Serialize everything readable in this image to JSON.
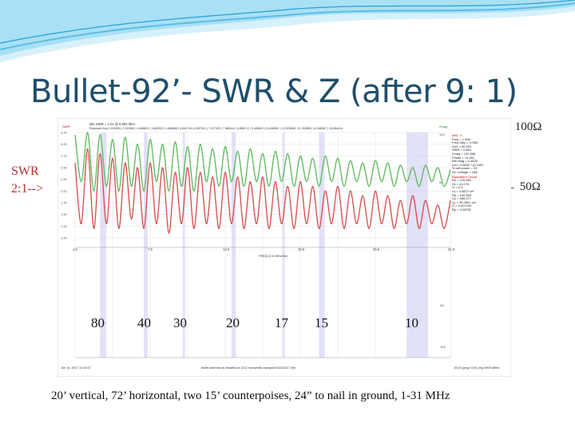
{
  "slide": {
    "title": "Bullet-92’- SWR & Z (after 9: 1)",
    "swr_label_line1": "SWR",
    "swr_label_line2": "2:1-->",
    "note_100": "← 100Ω",
    "note_50": "← 50Ω",
    "bands": [
      "80",
      "40",
      "30",
      "20",
      "17",
      "15",
      "10"
    ],
    "caption": "20’ vertical, 72’ horizontal, two 15’ counterpoises, 24” to nail in ground, 1-31 MHz"
  },
  "colors": {
    "title": "#1f4e6b",
    "swr": "#d84b4b",
    "z": "#5cb85c",
    "band_shade": "#c9c9f2",
    "header_wave": "#8fd3f0"
  },
  "chart_data": {
    "type": "line",
    "title": "",
    "header_line1": "Min SWR = 1.01 @ 8.950 MHz",
    "header_line2": "Resonant freq 1.578283 | 2.320381 | 3.848829 | 3.862833 | 4.898888 | 5.661734 | 6.367451 | 7.317303 | 7.885444 | 8.858712 | 9.485825 | 10.456961 | 11.003606 | 12.192858 | 12.548387 | 13.654414",
    "xlabel": "FREQ (2.9 MHz/div)",
    "x_ticks": [
      "1.5",
      "7.5",
      "13.5",
      "19.5",
      "25.5",
      "31.5"
    ],
    "xlim": [
      1.5,
      31.5
    ],
    "swr_axis": {
      "label": "SWR",
      "ticks": [
        "3.25",
        "3.00",
        "2.75",
        "2.50",
        "2.25",
        "2.00",
        "1.75",
        "1.50",
        "1.25",
        "1.00"
      ],
      "ylim": [
        1.0,
        3.25
      ]
    },
    "z_axis": {
      "label": "Zmag",
      "ticks": [
        "100",
        "50",
        "-50",
        "-100"
      ]
    },
    "swr_series": {
      "name": "SWR",
      "x": [
        1.5,
        2,
        2.5,
        3,
        3.5,
        4,
        4.5,
        5,
        5.5,
        6,
        6.5,
        7,
        7.5,
        8,
        8.5,
        9,
        9.5,
        10,
        10.5,
        11,
        11.5,
        12,
        12.5,
        13,
        13.5,
        14,
        14.5,
        15,
        15.5,
        16,
        16.5,
        17,
        17.5,
        18,
        18.5,
        19,
        19.5,
        20,
        20.5,
        21,
        21.5,
        22,
        22.5,
        23,
        23.5,
        24,
        24.5,
        25,
        25.5,
        26,
        26.5,
        27,
        27.5,
        28,
        28.5,
        29,
        29.5,
        30,
        30.5,
        31,
        31.5
      ],
      "values": [
        2.6,
        1.3,
        2.9,
        1.2,
        2.8,
        1.3,
        2.7,
        1.2,
        2.6,
        1.4,
        2.5,
        1.2,
        2.6,
        1.3,
        2.5,
        1.1,
        2.4,
        1.3,
        2.5,
        1.2,
        2.4,
        1.3,
        2.3,
        1.2,
        2.4,
        1.3,
        2.3,
        1.2,
        2.2,
        1.3,
        2.3,
        1.2,
        2.2,
        1.3,
        2.1,
        1.2,
        2.2,
        1.3,
        2.1,
        1.2,
        2.0,
        1.3,
        2.1,
        1.2,
        2.0,
        1.3,
        1.9,
        1.2,
        2.0,
        1.3,
        1.9,
        1.2,
        1.8,
        1.3,
        1.9,
        1.2,
        1.8,
        1.3,
        1.7,
        1.2,
        1.8
      ]
    },
    "z_series": {
      "name": "Zmag",
      "x": [
        1.5,
        2,
        2.5,
        3,
        3.5,
        4,
        4.5,
        5,
        5.5,
        6,
        6.5,
        7,
        7.5,
        8,
        8.5,
        9,
        9.5,
        10,
        10.5,
        11,
        11.5,
        12,
        12.5,
        13,
        13.5,
        14,
        14.5,
        15,
        15.5,
        16,
        16.5,
        17,
        17.5,
        18,
        18.5,
        19,
        19.5,
        20,
        20.5,
        21,
        21.5,
        22,
        22.5,
        23,
        23.5,
        24,
        24.5,
        25,
        25.5,
        26,
        26.5,
        27,
        27.5,
        28,
        28.5,
        29,
        29.5,
        30,
        30.5,
        31,
        31.5
      ],
      "values": [
        3.2,
        2.2,
        3.25,
        2.0,
        3.2,
        2.1,
        3.1,
        2.0,
        3.15,
        2.1,
        3.0,
        2.0,
        3.1,
        2.2,
        3.0,
        2.0,
        3.05,
        2.1,
        2.95,
        2.0,
        3.0,
        2.2,
        2.9,
        2.1,
        2.95,
        2.2,
        2.85,
        2.1,
        2.9,
        2.2,
        2.8,
        2.1,
        2.85,
        2.2,
        2.8,
        2.1,
        2.75,
        2.2,
        2.7,
        2.1,
        2.75,
        2.2,
        2.7,
        2.1,
        2.65,
        2.2,
        2.6,
        2.1,
        2.65,
        2.2,
        2.6,
        2.1,
        2.55,
        2.2,
        2.5,
        2.1,
        2.55,
        2.2,
        2.5,
        2.1,
        2.45
      ]
    },
    "band_regions": [
      {
        "from": 3.5,
        "to": 4.0
      },
      {
        "from": 7.0,
        "to": 7.3
      },
      {
        "from": 10.1,
        "to": 10.15
      },
      {
        "from": 14.0,
        "to": 14.35
      },
      {
        "from": 18.07,
        "to": 18.17
      },
      {
        "from": 21.0,
        "to": 21.45
      },
      {
        "from": 28.0,
        "to": 29.7
      }
    ],
    "info_panel": {
      "header": "IMG: 4",
      "rows": [
        "Freq = 1.589",
        "Freq Step = 0.050",
        "Zref = 50.000",
        "SWR = 2.864",
        "Zmag = 132.666",
        "Phase = 19.451",
        "Rtn Mag = 0.4625",
        "s11= 0.4636 + j0.1351",
        "% refl power = 23",
        "DC Voltage = 168"
      ],
      "ec_header": "Equivalent Circuit",
      "ec_rows": [
        "Rs = 125.089",
        "Xs = 44.176",
        "G = 0.4",
        "Ls = 4.5872 uH",
        "Rp = 140.590",
        "Xp = 398.377",
        "Lp = 39.2691 uH",
        "G = 0.007160",
        "Bp = 0.00251"
      ]
    },
    "footer_left": "Jun 14, 2017  14:13:07",
    "footer_center": "bullet antenna as installed at 1412 monserats backyard 04122017 shfr",
    "footer_right": "15:23 (prog 0101) img 8909 alfred"
  }
}
